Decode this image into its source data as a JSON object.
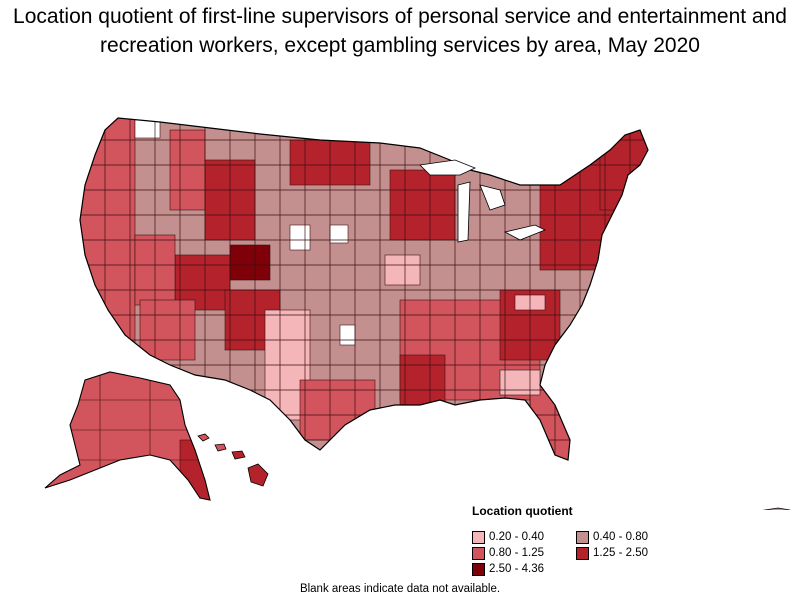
{
  "title": "Location quotient of first-line supervisors of personal service and entertainment and recreation workers, except gambling services by area, May 2020",
  "legend": {
    "title": "Location quotient",
    "bins": [
      {
        "label": "0.20 - 0.40",
        "color": "#f4b6b9"
      },
      {
        "label": "0.40 - 0.80",
        "color": "#c4908f"
      },
      {
        "label": "0.80 - 1.25",
        "color": "#d2545c"
      },
      {
        "label": "1.25 - 2.50",
        "color": "#b4232c"
      },
      {
        "label": "2.50 - 4.36",
        "color": "#7e0008"
      }
    ]
  },
  "footnote": "Blank areas indicate data not available.",
  "no_data_color": "#ffffff"
}
